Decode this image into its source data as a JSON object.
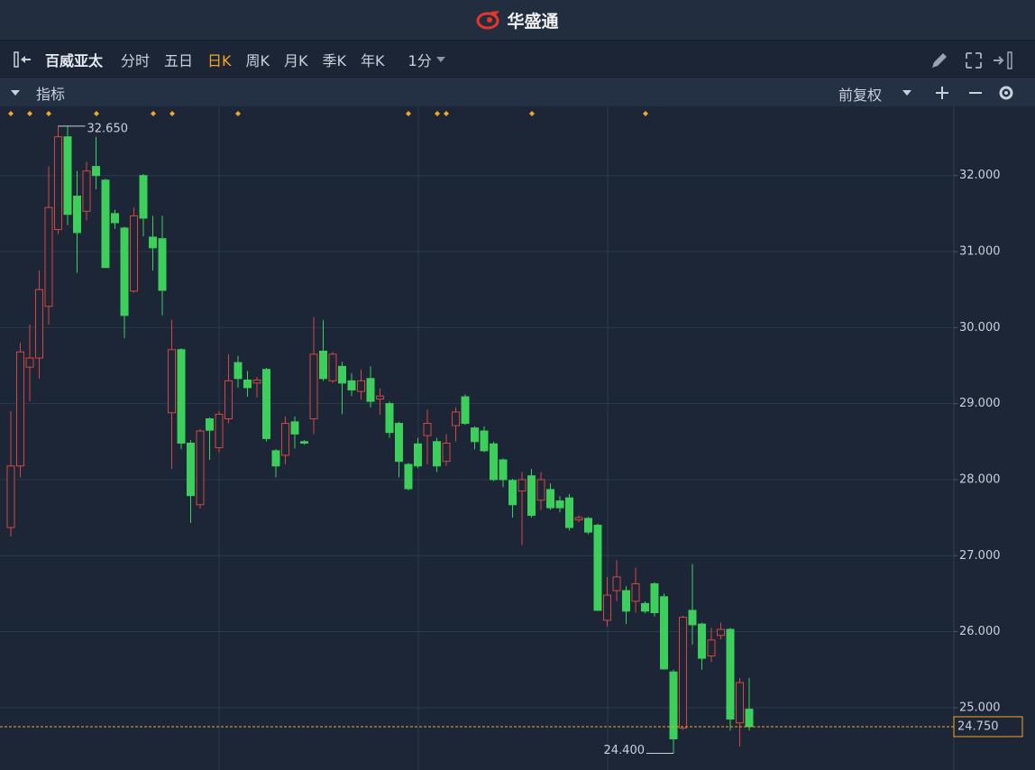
{
  "header": {
    "app_name": "华盛通"
  },
  "toolbar": {
    "symbol": "百威亚太",
    "periods": [
      "分时",
      "五日",
      "日K",
      "周K",
      "月K",
      "季K",
      "年K"
    ],
    "active_period": "日K",
    "interval": "1分"
  },
  "indicator_bar": {
    "label": "指标",
    "adjust": "前复权"
  },
  "chart_data": {
    "type": "candlestick",
    "open": [
      27.37,
      28.18,
      29.48,
      29.6,
      30.28,
      31.29,
      32.51,
      31.73,
      31.53,
      32.12,
      31.94,
      31.5,
      31.31,
      30.48,
      32.0,
      31.19,
      31.17,
      28.88,
      29.71,
      28.48,
      27.67,
      28.8,
      28.42,
      28.8,
      29.54,
      29.31,
      29.27,
      29.45,
      28.38,
      28.32,
      28.76,
      28.5,
      28.8,
      29.69,
      29.3,
      29.49,
      29.3,
      29.16,
      29.33,
      29.06,
      29.0,
      28.74,
      28.2,
      28.47,
      28.58,
      28.5,
      28.24,
      28.71,
      29.09,
      28.68,
      28.64,
      28.47,
      28.26,
      27.99,
      27.85,
      28.05,
      27.73,
      27.87,
      27.72,
      27.76,
      27.47,
      27.49,
      27.4,
      26.15,
      26.54,
      26.54,
      26.4,
      26.37,
      26.63,
      26.46,
      25.47,
      24.73,
      26.28,
      26.1,
      25.68,
      25.95,
      26.03,
      24.8,
      24.98
    ],
    "high": [
      28.9,
      29.8,
      30.04,
      30.75,
      32.12,
      32.65,
      32.65,
      32.06,
      32.18,
      32.51,
      31.96,
      31.55,
      31.33,
      31.58,
      32.02,
      31.47,
      31.47,
      30.1,
      29.73,
      28.52,
      28.66,
      28.82,
      28.9,
      29.65,
      29.63,
      29.43,
      29.35,
      29.47,
      28.4,
      28.83,
      28.83,
      28.52,
      30.14,
      30.1,
      29.68,
      29.55,
      29.4,
      29.45,
      29.49,
      29.2,
      29.03,
      28.76,
      28.22,
      28.55,
      28.92,
      28.55,
      28.6,
      28.95,
      29.12,
      28.7,
      28.7,
      28.5,
      28.28,
      28.01,
      28.1,
      28.14,
      28.1,
      27.95,
      27.78,
      27.81,
      27.53,
      27.51,
      27.42,
      26.72,
      26.94,
      26.6,
      26.84,
      26.4,
      26.65,
      26.5,
      25.5,
      26.21,
      26.89,
      26.12,
      26.05,
      26.12,
      26.05,
      25.39,
      25.39
    ],
    "low": [
      27.25,
      28.03,
      29.03,
      29.33,
      30.04,
      31.23,
      31.35,
      30.72,
      31.41,
      31.82,
      30.79,
      31.3,
      29.86,
      30.46,
      31.2,
      30.75,
      30.16,
      28.14,
      28.4,
      27.43,
      27.62,
      28.26,
      28.36,
      28.74,
      29.21,
      29.09,
      29.08,
      28.5,
      28.03,
      28.2,
      28.41,
      28.46,
      28.6,
      29.3,
      29.27,
      28.86,
      29.1,
      29.05,
      28.95,
      28.85,
      28.55,
      28.03,
      27.86,
      28.15,
      28.2,
      28.1,
      28.18,
      28.5,
      28.72,
      28.4,
      28.36,
      27.98,
      27.9,
      27.5,
      27.14,
      27.5,
      27.6,
      27.6,
      27.57,
      27.33,
      27.44,
      27.28,
      26.28,
      26.07,
      26.4,
      26.1,
      26.25,
      26.24,
      26.2,
      25.5,
      24.4,
      24.71,
      25.83,
      25.5,
      25.6,
      25.9,
      24.7,
      24.49,
      24.7
    ],
    "close": [
      28.18,
      29.68,
      29.6,
      30.5,
      31.58,
      32.51,
      31.49,
      31.25,
      32.06,
      32.0,
      30.79,
      31.38,
      30.16,
      31.47,
      31.44,
      31.05,
      30.49,
      29.71,
      28.48,
      27.79,
      28.64,
      28.65,
      28.86,
      29.3,
      29.33,
      29.21,
      29.31,
      28.54,
      28.18,
      28.74,
      28.6,
      28.48,
      29.65,
      29.33,
      29.65,
      29.27,
      29.18,
      29.3,
      29.03,
      29.1,
      28.62,
      28.24,
      27.88,
      28.18,
      28.74,
      28.18,
      28.48,
      28.89,
      28.74,
      28.5,
      28.38,
      28.0,
      28.0,
      27.67,
      28.0,
      27.53,
      28.0,
      27.63,
      27.63,
      27.37,
      27.5,
      27.31,
      26.28,
      26.48,
      26.72,
      26.27,
      26.63,
      26.27,
      26.25,
      25.51,
      24.59,
      26.19,
      26.09,
      25.65,
      25.89,
      26.03,
      24.85,
      25.33,
      24.75
    ],
    "up_color": "#d9463f",
    "down_color": "#3ccf5b",
    "ylim": [
      24.18,
      32.91
    ],
    "yticks": [
      {
        "value": 25,
        "label": "25.000"
      },
      {
        "value": 26,
        "label": "26.000"
      },
      {
        "value": 27,
        "label": "27.000"
      },
      {
        "value": 28,
        "label": "28.000"
      },
      {
        "value": 29,
        "label": "29.000"
      },
      {
        "value": 30,
        "label": "30.000"
      },
      {
        "value": 31,
        "label": "31.000"
      },
      {
        "value": 32,
        "label": "32.000"
      }
    ],
    "grid": true,
    "high_marker": {
      "value": 32.65,
      "label": "32.650"
    },
    "low_marker": {
      "value": 24.4,
      "label": "24.400"
    },
    "last_price": {
      "value": 24.75,
      "label": "24.750"
    }
  }
}
